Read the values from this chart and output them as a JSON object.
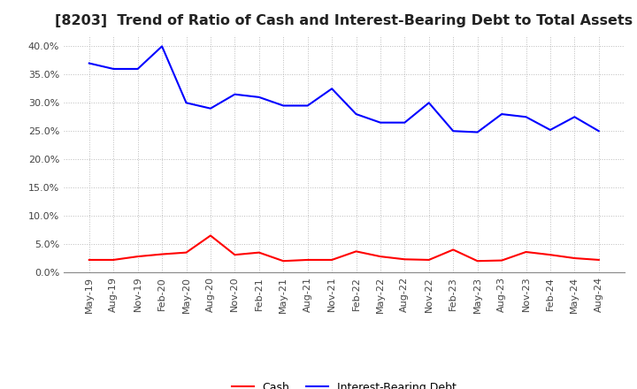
{
  "title": "[8203]  Trend of Ratio of Cash and Interest-Bearing Debt to Total Assets",
  "labels": [
    "May-19",
    "Aug-19",
    "Nov-19",
    "Feb-20",
    "May-20",
    "Aug-20",
    "Nov-20",
    "Feb-21",
    "May-21",
    "Aug-21",
    "Nov-21",
    "Feb-22",
    "May-22",
    "Aug-22",
    "Nov-22",
    "Feb-23",
    "May-23",
    "Aug-23",
    "Nov-23",
    "Feb-24",
    "May-24",
    "Aug-24"
  ],
  "cash": [
    2.2,
    2.2,
    2.8,
    3.2,
    3.5,
    6.5,
    3.1,
    3.5,
    2.0,
    2.2,
    2.2,
    3.7,
    2.8,
    2.3,
    2.2,
    4.0,
    2.0,
    2.1,
    3.6,
    3.1,
    2.5,
    2.2
  ],
  "ibd": [
    37.0,
    36.0,
    36.0,
    40.0,
    30.0,
    29.0,
    31.5,
    31.0,
    29.5,
    29.5,
    32.5,
    28.0,
    26.5,
    26.5,
    30.0,
    25.0,
    24.8,
    28.0,
    27.5,
    25.2,
    27.5,
    25.0
  ],
  "cash_color": "#ff0000",
  "ibd_color": "#0000ff",
  "bg_color": "#ffffff",
  "plot_bg_color": "#ffffff",
  "ylim_min": 0,
  "ylim_max": 42,
  "yticks": [
    0,
    5,
    10,
    15,
    20,
    25,
    30,
    35,
    40
  ],
  "legend_cash": "Cash",
  "legend_ibd": "Interest-Bearing Debt",
  "title_fontsize": 11.5,
  "tick_fontsize": 8,
  "legend_fontsize": 9,
  "grid_color": "#bbbbbb",
  "line_width": 1.5
}
